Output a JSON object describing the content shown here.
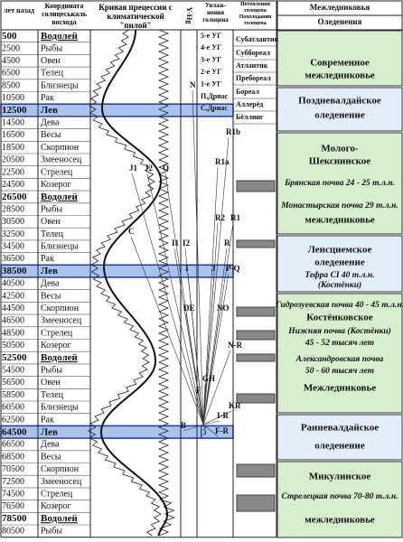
{
  "header": {
    "years": "лет назад",
    "zodiac": "Координата солнцеськаль восхода",
    "curve": "Кривая прецессии с климатической \"пилой\"",
    "yhg": "Y-Hg",
    "humid": "Увлаж-нения голоцена",
    "warm": "Потепления голоцена",
    "cold": "Похолодания голоцена",
    "interglacial": "Межледниковья",
    "glacial": "Оледенения"
  },
  "rows": [
    {
      "year": "500",
      "sign": "Водолей"
    },
    {
      "year": "2500",
      "sign": "Рыбы"
    },
    {
      "year": "4500",
      "sign": "Овен"
    },
    {
      "year": "6500",
      "sign": "Телец"
    },
    {
      "year": "8500",
      "sign": "Близнецы"
    },
    {
      "year": "10500",
      "sign": "Рак"
    },
    {
      "year": "12500",
      "sign": "Лев"
    },
    {
      "year": "14500",
      "sign": "Дева"
    },
    {
      "year": "16500",
      "sign": "Весы"
    },
    {
      "year": "18500",
      "sign": "Скорпион"
    },
    {
      "year": "20500",
      "sign": "Змееносец"
    },
    {
      "year": "22500",
      "sign": "Стрелец"
    },
    {
      "year": "24500",
      "sign": "Козерог"
    },
    {
      "year": "26500",
      "sign": "Водолей"
    },
    {
      "year": "28500",
      "sign": "Рыбы"
    },
    {
      "year": "30500",
      "sign": "Овен"
    },
    {
      "year": "32500",
      "sign": "Телец"
    },
    {
      "year": "34500",
      "sign": "Близнецы"
    },
    {
      "year": "36500",
      "sign": "Рак"
    },
    {
      "year": "38500",
      "sign": "Лев"
    },
    {
      "year": "40500",
      "sign": "Дева"
    },
    {
      "year": "42500",
      "sign": "Весы"
    },
    {
      "year": "44500",
      "sign": "Скорпион"
    },
    {
      "year": "46500",
      "sign": "Змееносец"
    },
    {
      "year": "48500",
      "sign": "Стрелец"
    },
    {
      "year": "50500",
      "sign": "Козерог"
    },
    {
      "year": "52500",
      "sign": "Водолей"
    },
    {
      "year": "54500",
      "sign": "Рыбы"
    },
    {
      "year": "56500",
      "sign": "Овен"
    },
    {
      "year": "58500",
      "sign": "Телец"
    },
    {
      "year": "60500",
      "sign": "Близнецы"
    },
    {
      "year": "62500",
      "sign": "Рак"
    },
    {
      "year": "64500",
      "sign": "Лев"
    },
    {
      "year": "66500",
      "sign": "Дева"
    },
    {
      "year": "68500",
      "sign": "Весы"
    },
    {
      "year": "70500",
      "sign": "Скорпион"
    },
    {
      "year": "72500",
      "sign": "Змееносец"
    },
    {
      "year": "74500",
      "sign": "Стрелец"
    },
    {
      "year": "76500",
      "sign": "Козерог"
    },
    {
      "year": "78500",
      "sign": "Водолей"
    },
    {
      "year": "80500",
      "sign": "Рыбы"
    }
  ],
  "humid": [
    "5-е УГ",
    "4-е УГ",
    "3-е УГ",
    "2-е УГ",
    "1-е УГ",
    "П,Дриас",
    "С,Дриас"
  ],
  "holocene": [
    "Субатлантик",
    "Суббореал",
    "Атлантик",
    "Пребореал",
    "Бореал",
    "Аллерёд",
    "Бёллинг"
  ],
  "line_labels": [
    "N",
    "R1b",
    "R1a",
    "J1",
    "J2",
    "O",
    "R2",
    "R1",
    "C",
    "I1",
    "I2",
    "R",
    "I",
    "J",
    "P-Q",
    "DE",
    "NO",
    "N-R",
    "GH",
    "F",
    "KR",
    "I-R",
    "B",
    "F-R",
    "β"
  ],
  "periods": [
    {
      "lines": [
        "Современное",
        "межледниковье"
      ]
    },
    {
      "lines": [
        "Поздневалдайское",
        "оледенение"
      ]
    },
    {
      "lines": [
        "Молого-",
        "Шекснинское",
        "Брянская почва 24 - 25 т.л.н.",
        "Монастырская почва 29 т.л.н.",
        "межледниковье"
      ]
    },
    {
      "lines": [
        "Ленсциемское",
        "оледенение",
        "Тефра CI 40 т.л.н.",
        "(Костёнки)"
      ]
    },
    {
      "lines": [
        "Гидрозуевская почва 40 - 45 т.л.н.",
        "Костёнковское",
        "Нижняя почва (Костёнки)",
        "45 - 52 тысяч лет",
        "Александровская почва",
        "50 - 60 тысяч лет",
        "Межледниковье"
      ]
    },
    {
      "lines": [
        "Ранневалдайское",
        "оледенение"
      ]
    },
    {
      "lines": [
        "Микулинское",
        "Стрелецкая почва 70-80 т.л.н.",
        "межледниковье"
      ]
    }
  ]
}
